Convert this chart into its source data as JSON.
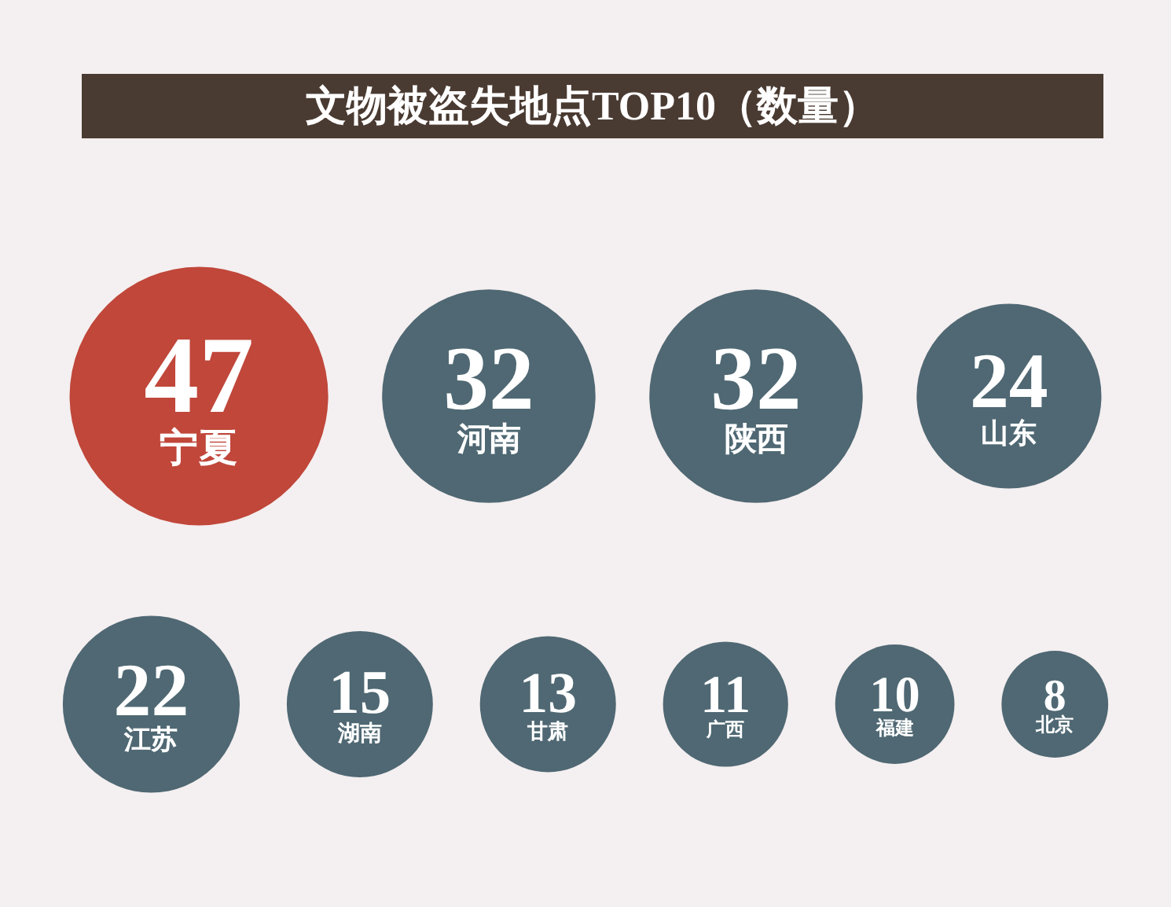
{
  "chart_data": {
    "type": "other",
    "title": "文物被盗失地点TOP10（数量）",
    "categories": [
      "宁夏",
      "河南",
      "陕西",
      "山东",
      "江苏",
      "湖南",
      "甘肃",
      "广西",
      "福建",
      "北京"
    ],
    "values": [
      47,
      32,
      32,
      24,
      22,
      15,
      13,
      11,
      10,
      8
    ],
    "colors": [
      "#c0473a",
      "#4f6873",
      "#4f6873",
      "#4f6873",
      "#4f6873",
      "#4f6873",
      "#4f6873",
      "#4f6873",
      "#4f6873",
      "#4f6873"
    ],
    "data_labels": true
  }
}
